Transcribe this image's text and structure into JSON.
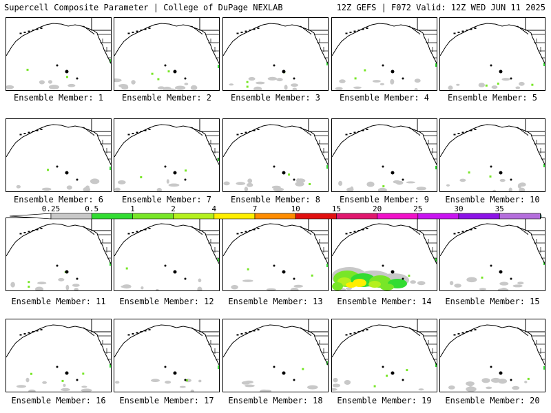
{
  "header": {
    "left": "Supercell Composite Parameter | College of DuPage NEXLAB",
    "right": "12Z GEFS | F072 Valid: 12Z WED JUN 11 2025"
  },
  "member_label_prefix": "Ensemble Member: ",
  "members": [
    1,
    2,
    3,
    4,
    5,
    6,
    7,
    8,
    9,
    10,
    11,
    12,
    13,
    14,
    15,
    16,
    17,
    18,
    19,
    20
  ],
  "map_extent": "North Pacific / West Coast of North America",
  "colorbar": {
    "ticks": [
      "0.25",
      "0.5",
      "1",
      "2",
      "4",
      "7",
      "10",
      "15",
      "20",
      "25",
      "30",
      "35"
    ],
    "colors": [
      "#c8c8c8",
      "#32dc32",
      "#78e628",
      "#b4f01e",
      "#ffee00",
      "#ff8c00",
      "#e01010",
      "#e0186e",
      "#f012c8",
      "#c814f0",
      "#8c14e6",
      "#b46edc",
      "#1ee6f0"
    ]
  },
  "notable": {
    "member": 14,
    "description": "large area of SCP 0.5-4 over subtropical East Pacific"
  }
}
